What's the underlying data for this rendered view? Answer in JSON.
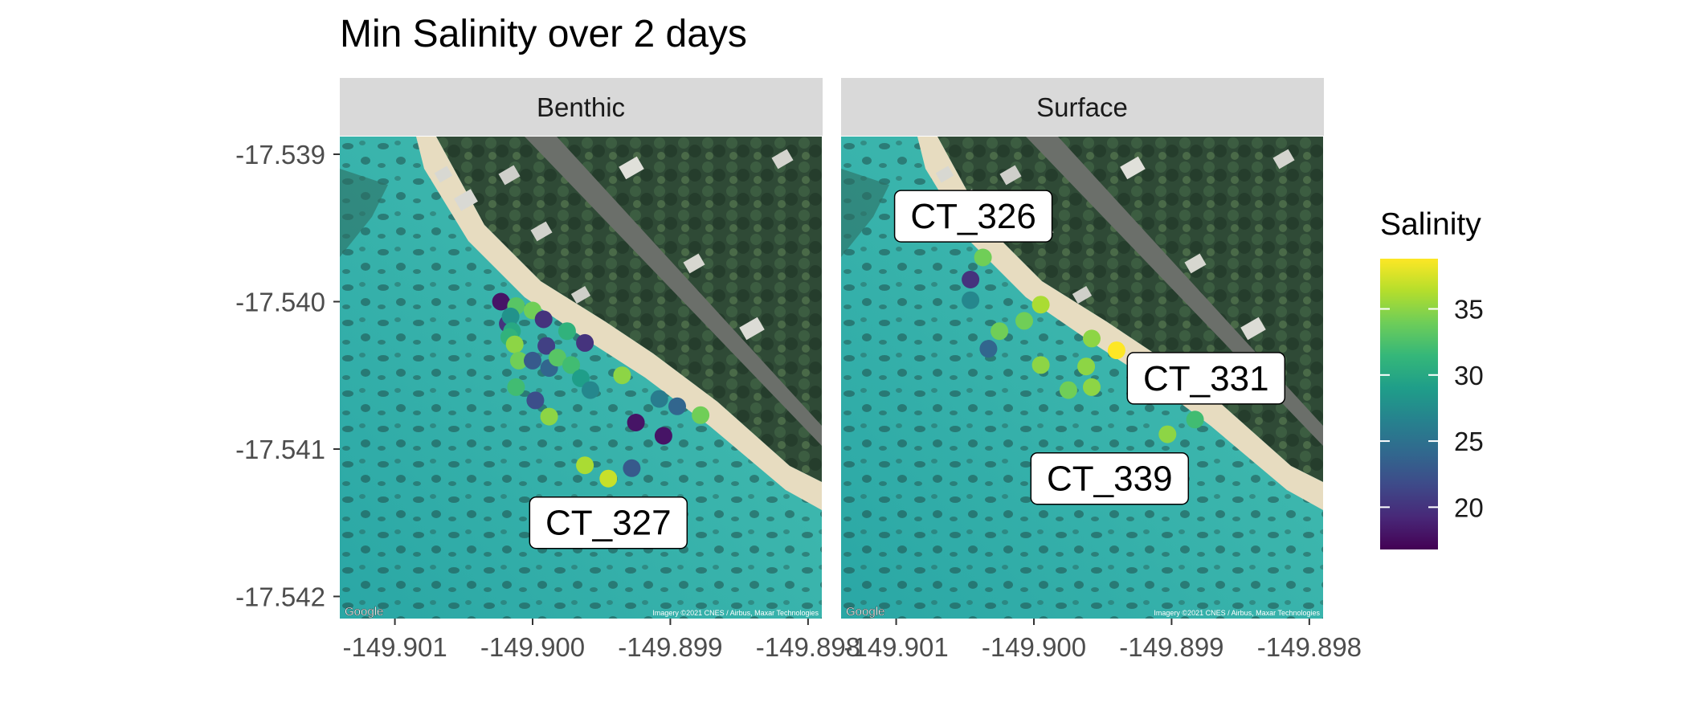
{
  "chart_data": {
    "type": "scatter",
    "title": "Min Salinity over 2 days",
    "xlabel": "",
    "ylabel": "",
    "xlim": [
      -149.9014,
      -149.8979
    ],
    "ylim": [
      -17.54215,
      -17.53888
    ],
    "x_ticks": [
      -149.901,
      -149.9,
      -149.899,
      -149.898
    ],
    "y_ticks": [
      -17.539,
      -17.54,
      -17.541,
      -17.542
    ],
    "x_tick_labels": [
      "-149.901",
      "-149.900",
      "-149.899",
      "-149.898"
    ],
    "y_tick_labels": [
      "-17.539",
      "-17.540",
      "-17.541",
      "-17.542"
    ],
    "grid": false,
    "background": "satellite imagery",
    "basemap_attribution": "Google",
    "imagery_credit": "Imagery ©2021 CNES / Airbus, Maxar Technologies",
    "colorbar": {
      "title": "Salinity",
      "min": 16.8,
      "max": 38.8,
      "ticks": [
        20,
        25,
        30,
        35
      ],
      "tick_labels": [
        "20",
        "25",
        "30",
        "35"
      ],
      "colormap": "viridis",
      "stops": [
        "#440154",
        "#482878",
        "#3E4A89",
        "#31688E",
        "#26828E",
        "#1F9E89",
        "#35B779",
        "#6DCD59",
        "#B4DE2C",
        "#FDE725"
      ]
    },
    "panels": [
      {
        "label": "Benthic",
        "points": [
          {
            "x": -149.90023,
            "y": -17.54,
            "salinity": 18
          },
          {
            "x": -149.90018,
            "y": -17.54015,
            "salinity": 20
          },
          {
            "x": -149.90012,
            "y": -17.54003,
            "salinity": 33
          },
          {
            "x": -149.90016,
            "y": -17.5401,
            "salinity": 28
          },
          {
            "x": -149.9,
            "y": -17.54006,
            "salinity": 34
          },
          {
            "x": -149.89992,
            "y": -17.54012,
            "salinity": 20
          },
          {
            "x": -149.90015,
            "y": -17.5402,
            "salinity": 30
          },
          {
            "x": -149.90017,
            "y": -17.54024,
            "salinity": 31
          },
          {
            "x": -149.90013,
            "y": -17.54029,
            "salinity": 35
          },
          {
            "x": -149.9001,
            "y": -17.5404,
            "salinity": 34
          },
          {
            "x": -149.8999,
            "y": -17.5403,
            "salinity": 21
          },
          {
            "x": -149.89975,
            "y": -17.5402,
            "salinity": 31
          },
          {
            "x": -149.89962,
            "y": -17.54028,
            "salinity": 20
          },
          {
            "x": -149.9,
            "y": -17.5404,
            "salinity": 23
          },
          {
            "x": -149.89988,
            "y": -17.54045,
            "salinity": 24
          },
          {
            "x": -149.89982,
            "y": -17.54038,
            "salinity": 33
          },
          {
            "x": -149.89972,
            "y": -17.54043,
            "salinity": 32
          },
          {
            "x": -149.89965,
            "y": -17.54052,
            "salinity": 29
          },
          {
            "x": -149.89958,
            "y": -17.5406,
            "salinity": 27
          },
          {
            "x": -149.90012,
            "y": -17.54058,
            "salinity": 32
          },
          {
            "x": -149.89998,
            "y": -17.54067,
            "salinity": 22
          },
          {
            "x": -149.89988,
            "y": -17.54078,
            "salinity": 35
          },
          {
            "x": -149.89935,
            "y": -17.5405,
            "salinity": 35
          },
          {
            "x": -149.89908,
            "y": -17.54066,
            "salinity": 26
          },
          {
            "x": -149.89895,
            "y": -17.54071,
            "salinity": 24
          },
          {
            "x": -149.89878,
            "y": -17.54077,
            "salinity": 34
          },
          {
            "x": -149.89925,
            "y": -17.54082,
            "salinity": 18
          },
          {
            "x": -149.89905,
            "y": -17.54091,
            "salinity": 18
          },
          {
            "x": -149.89962,
            "y": -17.54111,
            "salinity": 36
          },
          {
            "x": -149.89945,
            "y": -17.5412,
            "salinity": 37
          },
          {
            "x": -149.89928,
            "y": -17.54113,
            "salinity": 23
          }
        ],
        "labels": [
          {
            "text": "CT_327",
            "x": -149.89945,
            "y": -17.5415
          }
        ]
      },
      {
        "label": "Surface",
        "points": [
          {
            "x": -149.90037,
            "y": -17.5397,
            "salinity": 34
          },
          {
            "x": -149.90046,
            "y": -17.53985,
            "salinity": 20
          },
          {
            "x": -149.90046,
            "y": -17.53999,
            "salinity": 27
          },
          {
            "x": -149.90025,
            "y": -17.5402,
            "salinity": 34
          },
          {
            "x": -149.90007,
            "y": -17.54013,
            "salinity": 34
          },
          {
            "x": -149.89995,
            "y": -17.54002,
            "salinity": 36
          },
          {
            "x": -149.90033,
            "y": -17.54032,
            "salinity": 24
          },
          {
            "x": -149.89995,
            "y": -17.54043,
            "salinity": 35
          },
          {
            "x": -149.89975,
            "y": -17.5406,
            "salinity": 34
          },
          {
            "x": -149.89958,
            "y": -17.54025,
            "salinity": 35
          },
          {
            "x": -149.89962,
            "y": -17.54044,
            "salinity": 35
          },
          {
            "x": -149.89958,
            "y": -17.54058,
            "salinity": 35
          },
          {
            "x": -149.8994,
            "y": -17.54033,
            "salinity": 38.8
          },
          {
            "x": -149.89903,
            "y": -17.5409,
            "salinity": 35
          },
          {
            "x": -149.89883,
            "y": -17.5408,
            "salinity": 32
          }
        ],
        "labels": [
          {
            "text": "CT_326",
            "x": -149.90044,
            "y": -17.53942
          },
          {
            "text": "CT_331",
            "x": -149.89875,
            "y": -17.54052
          },
          {
            "text": "CT_339",
            "x": -149.89945,
            "y": -17.5412
          }
        ]
      }
    ]
  }
}
